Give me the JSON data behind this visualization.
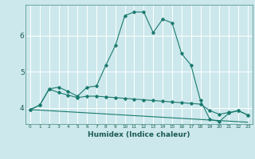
{
  "xlabel": "Humidex (Indice chaleur)",
  "bg_color": "#cce8ec",
  "grid_color": "#ffffff",
  "line_color": "#1a7a6e",
  "xlim": [
    -0.5,
    23.5
  ],
  "ylim": [
    3.55,
    6.85
  ],
  "xticks": [
    0,
    1,
    2,
    3,
    4,
    5,
    6,
    7,
    8,
    9,
    10,
    11,
    12,
    13,
    14,
    15,
    16,
    17,
    18,
    19,
    20,
    21,
    22,
    23
  ],
  "yticks": [
    4,
    5,
    6
  ],
  "series1_x": [
    0,
    1,
    2,
    3,
    4,
    5,
    6,
    7,
    8,
    9,
    10,
    11,
    12,
    13,
    14,
    15,
    16,
    17,
    18,
    19,
    20,
    21,
    22,
    23
  ],
  "series1_y": [
    3.95,
    4.07,
    4.52,
    4.57,
    4.45,
    4.32,
    4.57,
    4.6,
    5.18,
    5.72,
    6.55,
    6.65,
    6.65,
    6.08,
    6.45,
    6.35,
    5.5,
    5.18,
    4.2,
    3.68,
    3.62,
    3.85,
    3.92,
    3.8
  ],
  "series2_x": [
    0,
    1,
    2,
    3,
    4,
    5,
    6,
    7,
    8,
    9,
    10,
    11,
    12,
    13,
    14,
    15,
    16,
    17,
    18,
    19,
    20,
    21,
    22,
    23
  ],
  "series2_y": [
    3.95,
    4.07,
    4.52,
    4.42,
    4.35,
    4.28,
    4.32,
    4.32,
    4.3,
    4.28,
    4.26,
    4.24,
    4.22,
    4.2,
    4.18,
    4.16,
    4.14,
    4.12,
    4.1,
    3.92,
    3.82,
    3.87,
    3.92,
    3.8
  ],
  "series3_x": [
    0,
    23
  ],
  "series3_y": [
    3.95,
    3.6
  ]
}
